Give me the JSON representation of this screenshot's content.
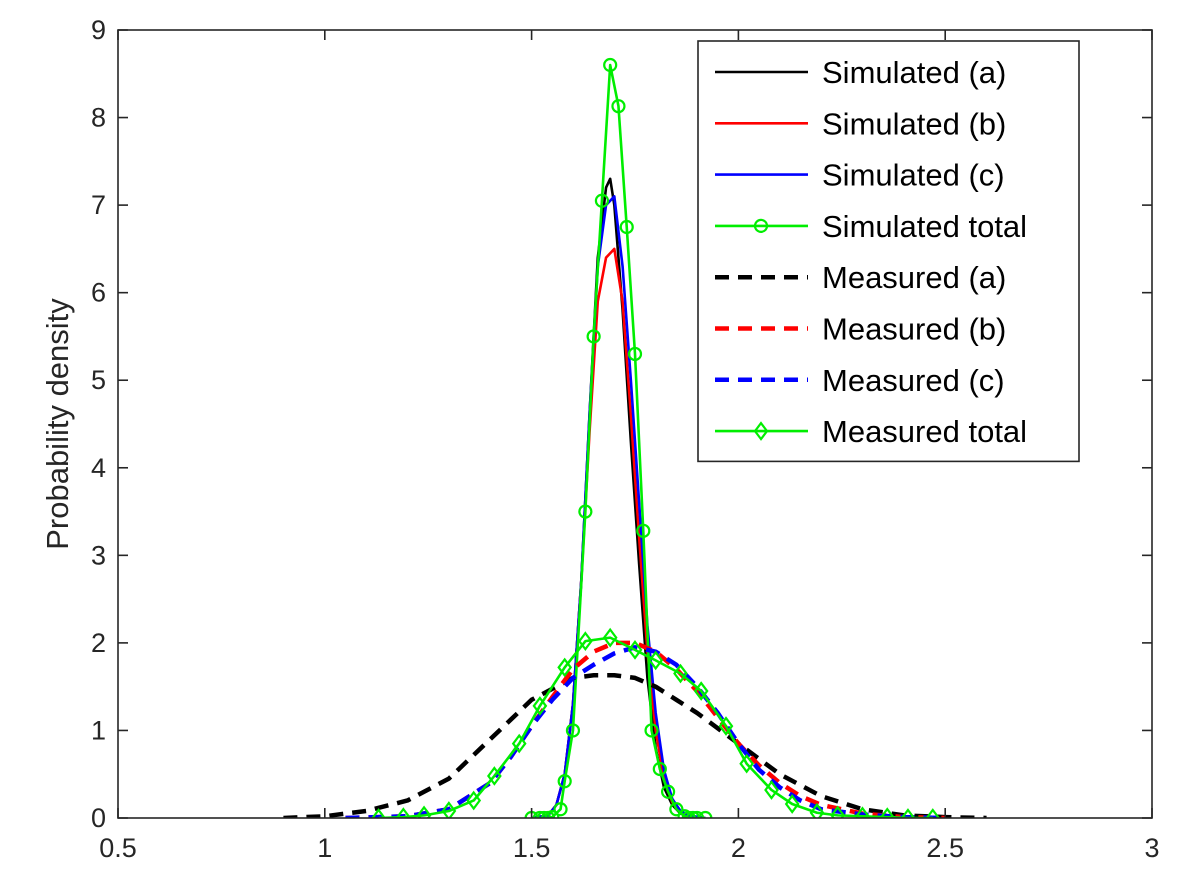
{
  "chart_data": {
    "type": "line",
    "title": "",
    "xlabel": "",
    "ylabel": "Probability density",
    "xlim": [
      0.5,
      3
    ],
    "ylim": [
      0,
      9
    ],
    "xticks": [
      0.5,
      1,
      1.5,
      2,
      2.5,
      3
    ],
    "xtick_labels": [
      "0.5",
      "1",
      "1.5",
      "2",
      "2.5",
      "3"
    ],
    "yticks": [
      0,
      1,
      2,
      3,
      4,
      5,
      6,
      7,
      8,
      9
    ],
    "ytick_labels": [
      "0",
      "1",
      "2",
      "3",
      "4",
      "5",
      "6",
      "7",
      "8",
      "9"
    ],
    "grid": false,
    "legend_position": "top-right",
    "series": [
      {
        "name": "Simulated (a)",
        "color": "#000000",
        "dash": "solid",
        "marker": "none",
        "x": [
          1.5,
          1.54,
          1.56,
          1.58,
          1.6,
          1.62,
          1.64,
          1.66,
          1.68,
          1.69,
          1.7,
          1.72,
          1.74,
          1.76,
          1.78,
          1.8,
          1.82,
          1.84,
          1.86,
          1.88,
          1.92
        ],
        "y": [
          0,
          0.03,
          0.15,
          0.5,
          1.3,
          2.7,
          4.6,
          6.4,
          7.2,
          7.3,
          7.0,
          5.8,
          4.3,
          2.9,
          1.6,
          0.8,
          0.35,
          0.15,
          0.05,
          0.02,
          0
        ]
      },
      {
        "name": "Simulated (b)",
        "color": "#ff0000",
        "dash": "solid",
        "marker": "none",
        "x": [
          1.5,
          1.54,
          1.56,
          1.58,
          1.6,
          1.62,
          1.64,
          1.66,
          1.68,
          1.7,
          1.72,
          1.74,
          1.76,
          1.78,
          1.8,
          1.82,
          1.84,
          1.86,
          1.88,
          1.92
        ],
        "y": [
          0,
          0.03,
          0.15,
          0.5,
          1.3,
          2.7,
          4.4,
          5.9,
          6.4,
          6.5,
          5.9,
          4.6,
          3.2,
          1.9,
          1.0,
          0.45,
          0.18,
          0.06,
          0.02,
          0
        ]
      },
      {
        "name": "Simulated (c)",
        "color": "#0000ff",
        "dash": "solid",
        "marker": "none",
        "x": [
          1.5,
          1.54,
          1.56,
          1.58,
          1.6,
          1.62,
          1.64,
          1.66,
          1.68,
          1.7,
          1.72,
          1.74,
          1.76,
          1.78,
          1.8,
          1.82,
          1.84,
          1.86,
          1.88,
          1.92
        ],
        "y": [
          0,
          0.03,
          0.15,
          0.5,
          1.3,
          2.7,
          4.6,
          6.3,
          7.0,
          7.1,
          6.3,
          5.0,
          3.6,
          2.2,
          1.2,
          0.55,
          0.22,
          0.08,
          0.03,
          0
        ]
      },
      {
        "name": "Simulated total",
        "color": "#00ee00",
        "dash": "solid",
        "marker": "circle",
        "x": [
          1.5,
          1.52,
          1.53,
          1.54,
          1.55,
          1.57,
          1.58,
          1.6,
          1.63,
          1.65,
          1.67,
          1.69,
          1.71,
          1.73,
          1.75,
          1.77,
          1.79,
          1.81,
          1.83,
          1.85,
          1.87,
          1.88,
          1.89,
          1.9,
          1.92
        ],
        "y": [
          0,
          0,
          0,
          0,
          0.01,
          0.1,
          0.42,
          1.0,
          3.5,
          5.5,
          7.05,
          8.6,
          8.13,
          6.75,
          5.3,
          3.28,
          1.0,
          0.56,
          0.3,
          0.1,
          0.02,
          0,
          0,
          0,
          0
        ]
      },
      {
        "name": "Measured (a)",
        "color": "#000000",
        "dash": "dashed",
        "marker": "none",
        "x": [
          0.9,
          1.0,
          1.1,
          1.2,
          1.3,
          1.4,
          1.5,
          1.6,
          1.65,
          1.7,
          1.75,
          1.8,
          1.85,
          1.9,
          2.0,
          2.1,
          2.2,
          2.3,
          2.4,
          2.5,
          2.6
        ],
        "y": [
          0,
          0.02,
          0.08,
          0.2,
          0.45,
          0.9,
          1.35,
          1.6,
          1.63,
          1.63,
          1.6,
          1.5,
          1.35,
          1.2,
          0.85,
          0.5,
          0.25,
          0.1,
          0.03,
          0.01,
          0
        ]
      },
      {
        "name": "Measured (b)",
        "color": "#ff0000",
        "dash": "dashed",
        "marker": "none",
        "x": [
          1.05,
          1.2,
          1.3,
          1.4,
          1.45,
          1.5,
          1.55,
          1.6,
          1.65,
          1.7,
          1.75,
          1.8,
          1.85,
          1.9,
          1.95,
          2.0,
          2.05,
          2.1,
          2.15,
          2.2,
          2.3,
          2.4,
          2.5
        ],
        "y": [
          0,
          0.02,
          0.1,
          0.4,
          0.7,
          1.05,
          1.38,
          1.7,
          1.9,
          2.0,
          2.0,
          1.9,
          1.7,
          1.45,
          1.15,
          0.85,
          0.6,
          0.4,
          0.25,
          0.15,
          0.05,
          0.01,
          0
        ]
      },
      {
        "name": "Measured (c)",
        "color": "#0000ff",
        "dash": "dashed",
        "marker": "none",
        "x": [
          1.05,
          1.2,
          1.3,
          1.4,
          1.45,
          1.5,
          1.55,
          1.6,
          1.65,
          1.7,
          1.75,
          1.8,
          1.85,
          1.9,
          1.95,
          2.0,
          2.05,
          2.1,
          2.15,
          2.2,
          2.3,
          2.4,
          2.5
        ],
        "y": [
          0,
          0.02,
          0.1,
          0.4,
          0.7,
          1.05,
          1.35,
          1.6,
          1.75,
          1.88,
          1.95,
          1.9,
          1.75,
          1.5,
          1.2,
          0.85,
          0.55,
          0.35,
          0.2,
          0.1,
          0.04,
          0.01,
          0
        ]
      },
      {
        "name": "Measured total",
        "color": "#00ee00",
        "dash": "solid",
        "marker": "diamond",
        "x": [
          1.13,
          1.19,
          1.24,
          1.3,
          1.36,
          1.41,
          1.47,
          1.52,
          1.58,
          1.63,
          1.69,
          1.75,
          1.8,
          1.86,
          1.91,
          1.97,
          2.02,
          2.08,
          2.13,
          2.19,
          2.24,
          2.3,
          2.36,
          2.41,
          2.47
        ],
        "y": [
          0,
          0.01,
          0.03,
          0.08,
          0.2,
          0.48,
          0.85,
          1.28,
          1.72,
          2.02,
          2.06,
          1.92,
          1.8,
          1.65,
          1.45,
          1.05,
          0.62,
          0.32,
          0.16,
          0.06,
          0.03,
          0.02,
          0.01,
          0,
          0
        ]
      }
    ]
  }
}
